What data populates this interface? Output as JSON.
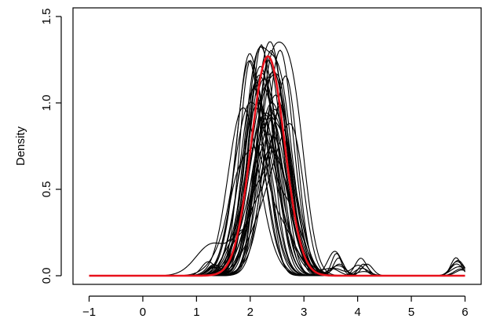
{
  "chart_data": {
    "type": "line",
    "title": "",
    "xlabel": "",
    "ylabel": "Density",
    "xlim": [
      -1.3,
      6.3
    ],
    "ylim": [
      -0.05,
      1.55
    ],
    "x_ticks": [
      -1,
      0,
      1,
      2,
      3,
      4,
      5,
      6
    ],
    "x_tick_labels": [
      "−1",
      "0",
      "1",
      "2",
      "3",
      "4",
      "5",
      "6"
    ],
    "y_ticks": [
      0.0,
      0.5,
      1.0,
      1.5
    ],
    "y_tick_labels": [
      "0.0",
      "0.5",
      "1.0",
      "1.5"
    ],
    "grid": false,
    "legend": "none",
    "colors": {
      "samples": "#000000",
      "reference": "#e8111b"
    },
    "sample_curves": {
      "count": 40,
      "x_range": [
        -1,
        6
      ],
      "peak_location_range": [
        2.05,
        2.55
      ],
      "peak_density_range": [
        0.7,
        1.37
      ],
      "notable_bumps": [
        {
          "x": 1.3,
          "density": 0.18
        },
        {
          "x": 3.6,
          "density": 0.07
        },
        {
          "x": 4.1,
          "density": 0.05
        },
        {
          "x": 5.9,
          "density": 0.04
        }
      ]
    },
    "reference_curve": {
      "x_range": [
        -1,
        6
      ],
      "peak_x": 2.33,
      "peak_density": 1.27,
      "sd": 0.31
    }
  }
}
